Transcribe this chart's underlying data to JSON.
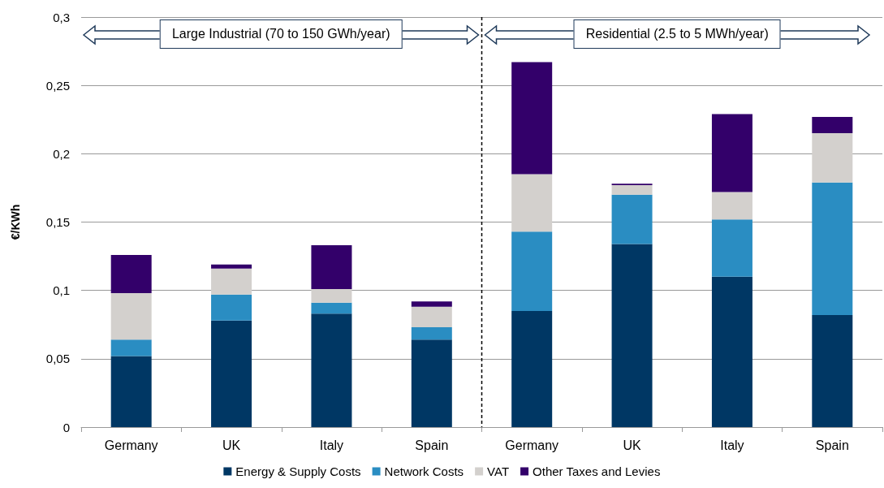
{
  "chart_data": {
    "type": "bar",
    "stacked": true,
    "ylabel": "€/KWh",
    "categories": [
      "Germany",
      "UK",
      "Italy",
      "Spain",
      "Germany",
      "UK",
      "Italy",
      "Spain"
    ],
    "series": [
      {
        "name": "Energy & Supply Costs",
        "color": "#003764",
        "values": [
          0.052,
          0.078,
          0.083,
          0.064,
          0.085,
          0.134,
          0.11,
          0.082
        ]
      },
      {
        "name": "Network Costs",
        "color": "#2a8dc2",
        "values": [
          0.012,
          0.019,
          0.008,
          0.009,
          0.058,
          0.036,
          0.042,
          0.097
        ]
      },
      {
        "name": "VAT",
        "color": "#d3d0cd",
        "values": [
          0.034,
          0.019,
          0.01,
          0.015,
          0.042,
          0.007,
          0.02,
          0.036
        ]
      },
      {
        "name": "Other Taxes and Levies",
        "color": "#33006a",
        "values": [
          0.028,
          0.003,
          0.032,
          0.004,
          0.082,
          0.001,
          0.057,
          0.012
        ]
      }
    ],
    "ylim": [
      0,
      0.3
    ],
    "yticks": [
      0,
      {
        "value": 0.05,
        "label": "0,05"
      },
      {
        "value": 0.1,
        "label": "0,1"
      },
      {
        "value": 0.15,
        "label": "0,15"
      },
      {
        "value": 0.2,
        "label": "0,2"
      },
      {
        "value": 0.25,
        "label": "0,25"
      },
      {
        "value": 0.3,
        "label": "0,3"
      }
    ],
    "grid": "y",
    "legend": "bottom",
    "annotations": [
      "Large Industrial (70 to 150 GWh/year)",
      "Residential (2.5 to 5 MWh/year)"
    ]
  }
}
